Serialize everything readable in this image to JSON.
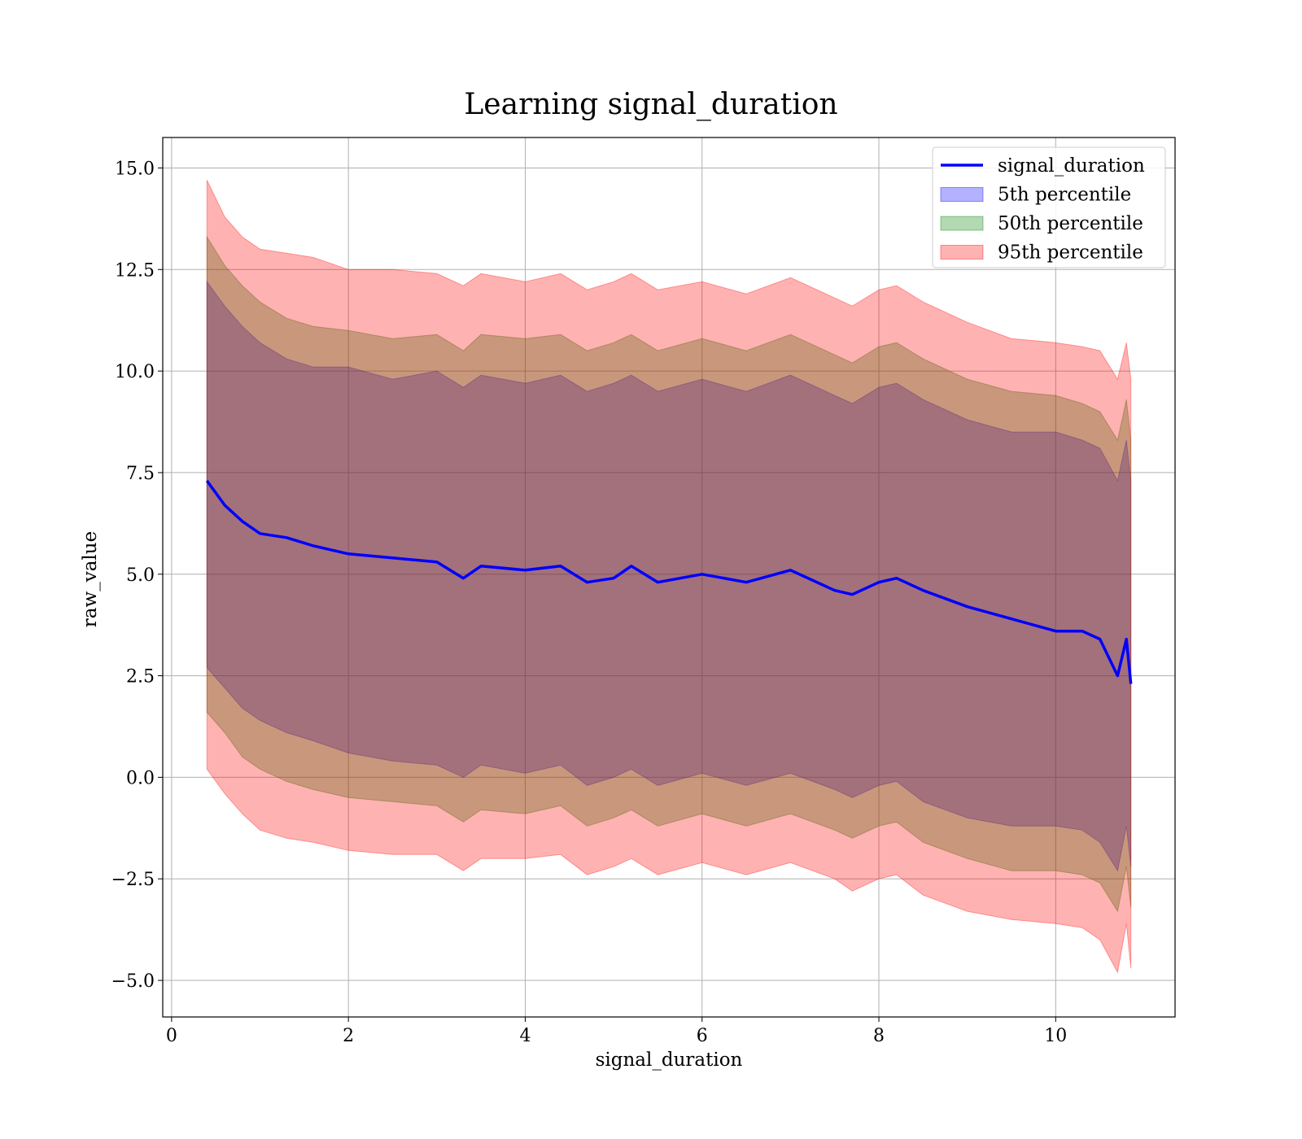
{
  "chart_data": {
    "type": "area",
    "title": "Learning signal_duration",
    "xlabel": "signal_duration",
    "ylabel": "raw_value",
    "xlim": [
      -0.1,
      11.35
    ],
    "ylim": [
      -5.9,
      15.75
    ],
    "grid": true,
    "legend_position": "top-right",
    "xticks": [
      0,
      2,
      4,
      6,
      8,
      10
    ],
    "xtick_labels": [
      "0",
      "2",
      "4",
      "6",
      "8",
      "10"
    ],
    "yticks": [
      -5.0,
      -2.5,
      0.0,
      2.5,
      5.0,
      7.5,
      10.0,
      12.5,
      15.0
    ],
    "ytick_labels": [
      "−5.0",
      "−2.5",
      "0.0",
      "2.5",
      "5.0",
      "7.5",
      "10.0",
      "12.5",
      "15.0"
    ],
    "x": [
      0.4,
      0.6,
      0.8,
      1.0,
      1.3,
      1.6,
      2.0,
      2.5,
      3.0,
      3.3,
      3.5,
      4.0,
      4.4,
      4.7,
      5.0,
      5.2,
      5.5,
      6.0,
      6.5,
      7.0,
      7.5,
      7.7,
      8.0,
      8.2,
      8.5,
      9.0,
      9.5,
      10.0,
      10.3,
      10.5,
      10.7,
      10.8,
      10.85
    ],
    "series": [
      {
        "name": "signal_duration",
        "kind": "line",
        "values": [
          7.3,
          6.7,
          6.3,
          6.0,
          5.9,
          5.7,
          5.5,
          5.4,
          5.3,
          4.9,
          5.2,
          5.1,
          5.2,
          4.8,
          4.9,
          5.2,
          4.8,
          5.0,
          4.8,
          5.1,
          4.6,
          4.5,
          4.8,
          4.9,
          4.6,
          4.2,
          3.9,
          3.6,
          3.6,
          3.4,
          2.5,
          3.4,
          2.3
        ]
      },
      {
        "name": "5th percentile",
        "kind": "band",
        "lower": [
          2.7,
          2.2,
          1.7,
          1.4,
          1.1,
          0.9,
          0.6,
          0.4,
          0.3,
          0.0,
          0.3,
          0.1,
          0.3,
          -0.2,
          0.0,
          0.2,
          -0.2,
          0.1,
          -0.2,
          0.1,
          -0.3,
          -0.5,
          -0.2,
          -0.1,
          -0.6,
          -1.0,
          -1.2,
          -1.2,
          -1.3,
          -1.6,
          -2.3,
          -1.2,
          -2.2
        ],
        "upper": [
          12.2,
          11.6,
          11.1,
          10.7,
          10.3,
          10.1,
          10.1,
          9.8,
          10.0,
          9.6,
          9.9,
          9.7,
          9.9,
          9.5,
          9.7,
          9.9,
          9.5,
          9.8,
          9.5,
          9.9,
          9.4,
          9.2,
          9.6,
          9.7,
          9.3,
          8.8,
          8.5,
          8.5,
          8.3,
          8.1,
          7.3,
          8.3,
          7.3
        ]
      },
      {
        "name": "50th percentile",
        "kind": "band",
        "lower": [
          1.6,
          1.1,
          0.5,
          0.2,
          -0.1,
          -0.3,
          -0.5,
          -0.6,
          -0.7,
          -1.1,
          -0.8,
          -0.9,
          -0.7,
          -1.2,
          -1.0,
          -0.8,
          -1.2,
          -0.9,
          -1.2,
          -0.9,
          -1.3,
          -1.5,
          -1.2,
          -1.1,
          -1.6,
          -2.0,
          -2.3,
          -2.3,
          -2.4,
          -2.6,
          -3.3,
          -2.2,
          -3.2
        ],
        "upper": [
          13.3,
          12.6,
          12.1,
          11.7,
          11.3,
          11.1,
          11.0,
          10.8,
          10.9,
          10.5,
          10.9,
          10.8,
          10.9,
          10.5,
          10.7,
          10.9,
          10.5,
          10.8,
          10.5,
          10.9,
          10.4,
          10.2,
          10.6,
          10.7,
          10.3,
          9.8,
          9.5,
          9.4,
          9.2,
          9.0,
          8.3,
          9.3,
          8.3
        ]
      },
      {
        "name": "95th percentile",
        "kind": "band",
        "lower": [
          0.2,
          -0.4,
          -0.9,
          -1.3,
          -1.5,
          -1.6,
          -1.8,
          -1.9,
          -1.9,
          -2.3,
          -2.0,
          -2.0,
          -1.9,
          -2.4,
          -2.2,
          -2.0,
          -2.4,
          -2.1,
          -2.4,
          -2.1,
          -2.5,
          -2.8,
          -2.5,
          -2.4,
          -2.9,
          -3.3,
          -3.5,
          -3.6,
          -3.7,
          -4.0,
          -4.8,
          -3.6,
          -4.7
        ],
        "upper": [
          14.7,
          13.8,
          13.3,
          13.0,
          12.9,
          12.8,
          12.5,
          12.5,
          12.4,
          12.1,
          12.4,
          12.2,
          12.4,
          12.0,
          12.2,
          12.4,
          12.0,
          12.2,
          11.9,
          12.3,
          11.8,
          11.6,
          12.0,
          12.1,
          11.7,
          11.2,
          10.8,
          10.7,
          10.6,
          10.5,
          9.8,
          10.7,
          9.8
        ]
      }
    ]
  },
  "legend": [
    {
      "label": "signal_duration",
      "kind": "line",
      "color": "#0000ff"
    },
    {
      "label": "5th percentile",
      "kind": "patch",
      "color": "#0000ff"
    },
    {
      "label": "50th percentile",
      "kind": "patch",
      "color": "#008000"
    },
    {
      "label": "95th percentile",
      "kind": "patch",
      "color": "#ff0000"
    }
  ],
  "colors": {
    "line": "#0000ff",
    "band_5th": "#0000ff",
    "band_50th": "#008000",
    "band_95th": "#ff0000",
    "grid": "#b0b0b0"
  }
}
